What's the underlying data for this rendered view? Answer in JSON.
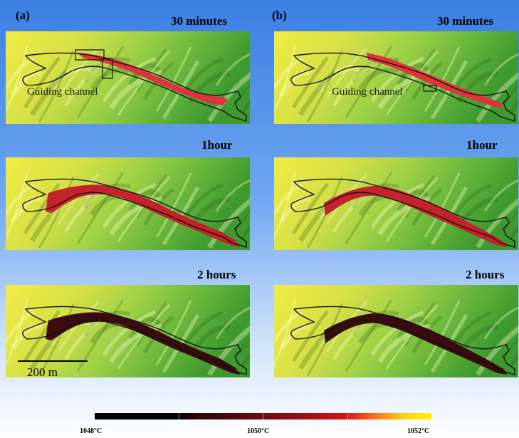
{
  "panel_a": {
    "letter": "(a)",
    "times": [
      "30 minutes",
      "1hour",
      "2 hours"
    ],
    "guide_label": "Guiding channel",
    "scale_label": "200 m"
  },
  "panel_b": {
    "letter": "(b)",
    "times": [
      "30 minutes",
      "1hour",
      "2 hours"
    ],
    "guide_label": "Guiding channel"
  },
  "colorbar": {
    "labels": [
      "1048°C",
      "1050°C",
      "1052°C"
    ],
    "colors": [
      "#000000",
      "#5a0a10",
      "#d8151c",
      "#ff7a1a",
      "#fff200"
    ]
  }
}
